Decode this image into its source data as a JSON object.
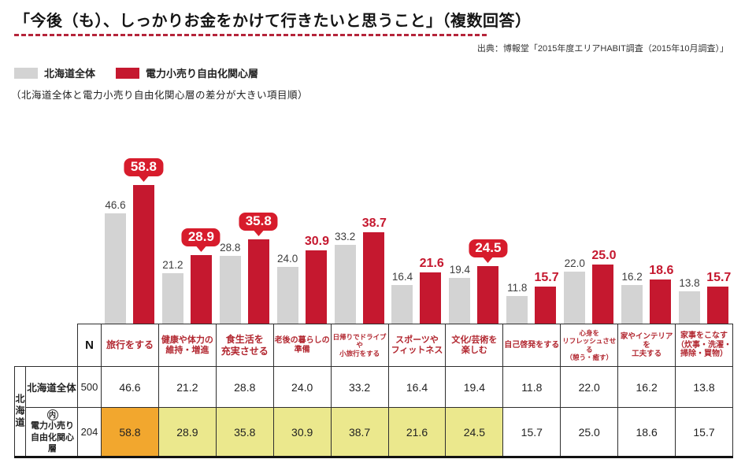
{
  "title": "「今後（も）、しっかりお金をかけて行きたいと思うこと」（複数回答）",
  "source": "出典：博報堂「2015年度エリアHABIT調査（2015年10月調査）」",
  "legend": {
    "series1": "北海道全体",
    "series2": "電力小売り自由化関心層",
    "note": "（北海道全体と電力小売り自由化関心層の差分が大きい項目順）"
  },
  "colors": {
    "bar_gray": "#d3d3d3",
    "bar_red": "#c5182f",
    "bubble_red": "#d71c2c",
    "header_text_red": "#b22730",
    "highlight_orange": "#f2a72e",
    "highlight_yellow": "#ebe88d"
  },
  "chart_data": {
    "type": "bar",
    "categories": [
      "旅行をする",
      "健康や体力の\n維持・増進",
      "食生活を\n充実させる",
      "老後の暮らしの\n準備",
      "日帰りでドライブや\n小旅行をする",
      "スポーツや\nフィットネス",
      "文化/芸術を\n楽しむ",
      "自己啓発をする",
      "心身を\nリフレッシュさせる\n（憩う・癒す）",
      "家やインテリアを\n工夫する",
      "家事をこなす\n（炊事・洗濯・\n掃除・買物）"
    ],
    "series": [
      {
        "name": "北海道全体",
        "n": 500,
        "values": [
          46.6,
          21.2,
          28.8,
          24.0,
          33.2,
          16.4,
          19.4,
          11.8,
          22.0,
          16.2,
          13.8
        ]
      },
      {
        "name": "電力小売り自由化関心層",
        "n": 204,
        "values": [
          58.8,
          28.9,
          35.8,
          30.9,
          38.7,
          21.6,
          24.5,
          15.7,
          25.0,
          18.6,
          15.7
        ]
      }
    ],
    "bubble_value_indices": [
      0,
      1,
      2,
      6
    ],
    "table_highlights": {
      "orange": [
        0
      ],
      "yellow": [
        1,
        2,
        3,
        4,
        5,
        6
      ]
    },
    "title": "「今後（も）、しっかりお金をかけて行きたいと思うこと」（複数回答）",
    "xlabel": "",
    "ylabel": "",
    "ylim": [
      0,
      60
    ],
    "grid": false,
    "legend_position": "top-left"
  },
  "table": {
    "n_header": "N",
    "region_label": "北海道",
    "row1_label": "北海道全体",
    "row2_label_prefix": "内",
    "row2_label_lines": [
      "電力小売り",
      "自由化関心層"
    ]
  }
}
